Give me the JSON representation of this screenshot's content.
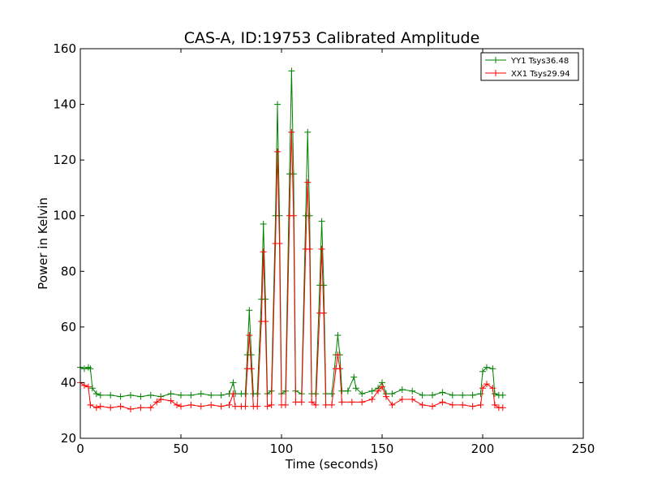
{
  "chart_data": {
    "type": "line",
    "title": "CAS-A, ID:19753 Calibrated Amplitude",
    "xlabel": "Time (seconds)",
    "ylabel": "Power in Kelvin",
    "xlim": [
      0,
      250
    ],
    "ylim": [
      20,
      160
    ],
    "xticks": [
      "0",
      "50",
      "100",
      "150",
      "200",
      "250"
    ],
    "yticks": [
      "20",
      "40",
      "60",
      "80",
      "100",
      "120",
      "140",
      "160"
    ],
    "grid": false,
    "legend_position": "top-right",
    "marker": "+",
    "series": [
      {
        "name": "YY1 Tsys36.48",
        "color": "#008000",
        "points": [
          [
            0,
            45.5
          ],
          [
            2,
            45
          ],
          [
            4,
            45.5
          ],
          [
            5,
            45
          ],
          [
            6,
            38
          ],
          [
            8,
            36
          ],
          [
            10,
            35.5
          ],
          [
            15,
            35.5
          ],
          [
            20,
            35
          ],
          [
            25,
            35.5
          ],
          [
            30,
            35
          ],
          [
            35,
            35.5
          ],
          [
            40,
            35
          ],
          [
            45,
            36
          ],
          [
            50,
            35.5
          ],
          [
            55,
            35.5
          ],
          [
            60,
            36
          ],
          [
            65,
            35.5
          ],
          [
            70,
            35.5
          ],
          [
            74,
            36
          ],
          [
            76,
            40
          ],
          [
            77,
            36
          ],
          [
            80,
            36
          ],
          [
            82,
            36
          ],
          [
            83,
            50
          ],
          [
            84,
            66
          ],
          [
            85,
            50
          ],
          [
            86,
            36
          ],
          [
            88,
            36
          ],
          [
            90,
            70
          ],
          [
            91,
            97
          ],
          [
            92,
            70
          ],
          [
            93,
            36
          ],
          [
            95,
            37
          ],
          [
            97,
            100
          ],
          [
            98,
            140
          ],
          [
            99,
            100
          ],
          [
            100,
            36
          ],
          [
            102,
            37
          ],
          [
            104,
            115
          ],
          [
            105,
            152
          ],
          [
            106,
            115
          ],
          [
            107,
            37
          ],
          [
            110,
            36
          ],
          [
            112,
            100
          ],
          [
            113,
            130
          ],
          [
            114,
            100
          ],
          [
            115,
            36
          ],
          [
            117,
            36
          ],
          [
            119,
            75
          ],
          [
            120,
            98
          ],
          [
            121,
            75
          ],
          [
            122,
            36
          ],
          [
            125,
            36
          ],
          [
            127,
            50
          ],
          [
            128,
            57
          ],
          [
            129,
            50
          ],
          [
            130,
            37
          ],
          [
            133,
            37
          ],
          [
            136,
            42
          ],
          [
            137,
            38
          ],
          [
            140,
            36
          ],
          [
            145,
            37
          ],
          [
            148,
            38
          ],
          [
            150,
            40
          ],
          [
            152,
            36
          ],
          [
            155,
            36
          ],
          [
            160,
            37.5
          ],
          [
            165,
            37
          ],
          [
            170,
            35.5
          ],
          [
            175,
            35.5
          ],
          [
            180,
            36.5
          ],
          [
            185,
            35.5
          ],
          [
            190,
            35.5
          ],
          [
            195,
            35.5
          ],
          [
            199,
            36
          ],
          [
            200,
            44
          ],
          [
            202,
            45.5
          ],
          [
            205,
            45
          ],
          [
            206,
            36
          ],
          [
            208,
            35.5
          ],
          [
            210,
            35.5
          ]
        ]
      },
      {
        "name": "XX1 Tsys29.94",
        "color": "#ff0000",
        "points": [
          [
            0,
            40
          ],
          [
            2,
            39
          ],
          [
            4,
            38.5
          ],
          [
            5,
            32
          ],
          [
            8,
            31
          ],
          [
            10,
            31.5
          ],
          [
            15,
            31
          ],
          [
            20,
            31.5
          ],
          [
            25,
            30.5
          ],
          [
            30,
            31
          ],
          [
            35,
            31
          ],
          [
            38,
            33
          ],
          [
            40,
            34
          ],
          [
            45,
            33.5
          ],
          [
            48,
            32
          ],
          [
            50,
            31.5
          ],
          [
            55,
            32
          ],
          [
            60,
            31.5
          ],
          [
            65,
            32
          ],
          [
            70,
            31.5
          ],
          [
            74,
            32
          ],
          [
            76,
            36
          ],
          [
            77,
            31.5
          ],
          [
            80,
            31.5
          ],
          [
            82,
            31.5
          ],
          [
            83,
            45
          ],
          [
            84,
            57
          ],
          [
            85,
            45
          ],
          [
            86,
            31.5
          ],
          [
            88,
            31.5
          ],
          [
            90,
            62
          ],
          [
            91,
            87
          ],
          [
            92,
            62
          ],
          [
            93,
            31.5
          ],
          [
            95,
            32
          ],
          [
            97,
            90
          ],
          [
            98,
            123
          ],
          [
            99,
            90
          ],
          [
            100,
            32
          ],
          [
            102,
            32
          ],
          [
            104,
            100
          ],
          [
            105,
            130
          ],
          [
            106,
            100
          ],
          [
            107,
            33
          ],
          [
            110,
            33
          ],
          [
            112,
            88
          ],
          [
            113,
            112
          ],
          [
            114,
            88
          ],
          [
            115,
            33
          ],
          [
            117,
            32
          ],
          [
            119,
            65
          ],
          [
            120,
            88
          ],
          [
            121,
            65
          ],
          [
            122,
            32
          ],
          [
            125,
            32
          ],
          [
            127,
            45
          ],
          [
            128,
            50
          ],
          [
            129,
            45
          ],
          [
            130,
            33
          ],
          [
            135,
            33
          ],
          [
            140,
            33
          ],
          [
            145,
            34
          ],
          [
            148,
            37
          ],
          [
            150,
            38.5
          ],
          [
            152,
            35
          ],
          [
            155,
            32
          ],
          [
            160,
            34
          ],
          [
            165,
            34
          ],
          [
            170,
            32
          ],
          [
            175,
            31.5
          ],
          [
            180,
            33
          ],
          [
            185,
            32
          ],
          [
            190,
            32
          ],
          [
            195,
            31.5
          ],
          [
            199,
            32
          ],
          [
            200,
            38
          ],
          [
            202,
            39.5
          ],
          [
            205,
            38
          ],
          [
            206,
            32
          ],
          [
            208,
            31
          ],
          [
            210,
            31
          ]
        ]
      }
    ]
  }
}
